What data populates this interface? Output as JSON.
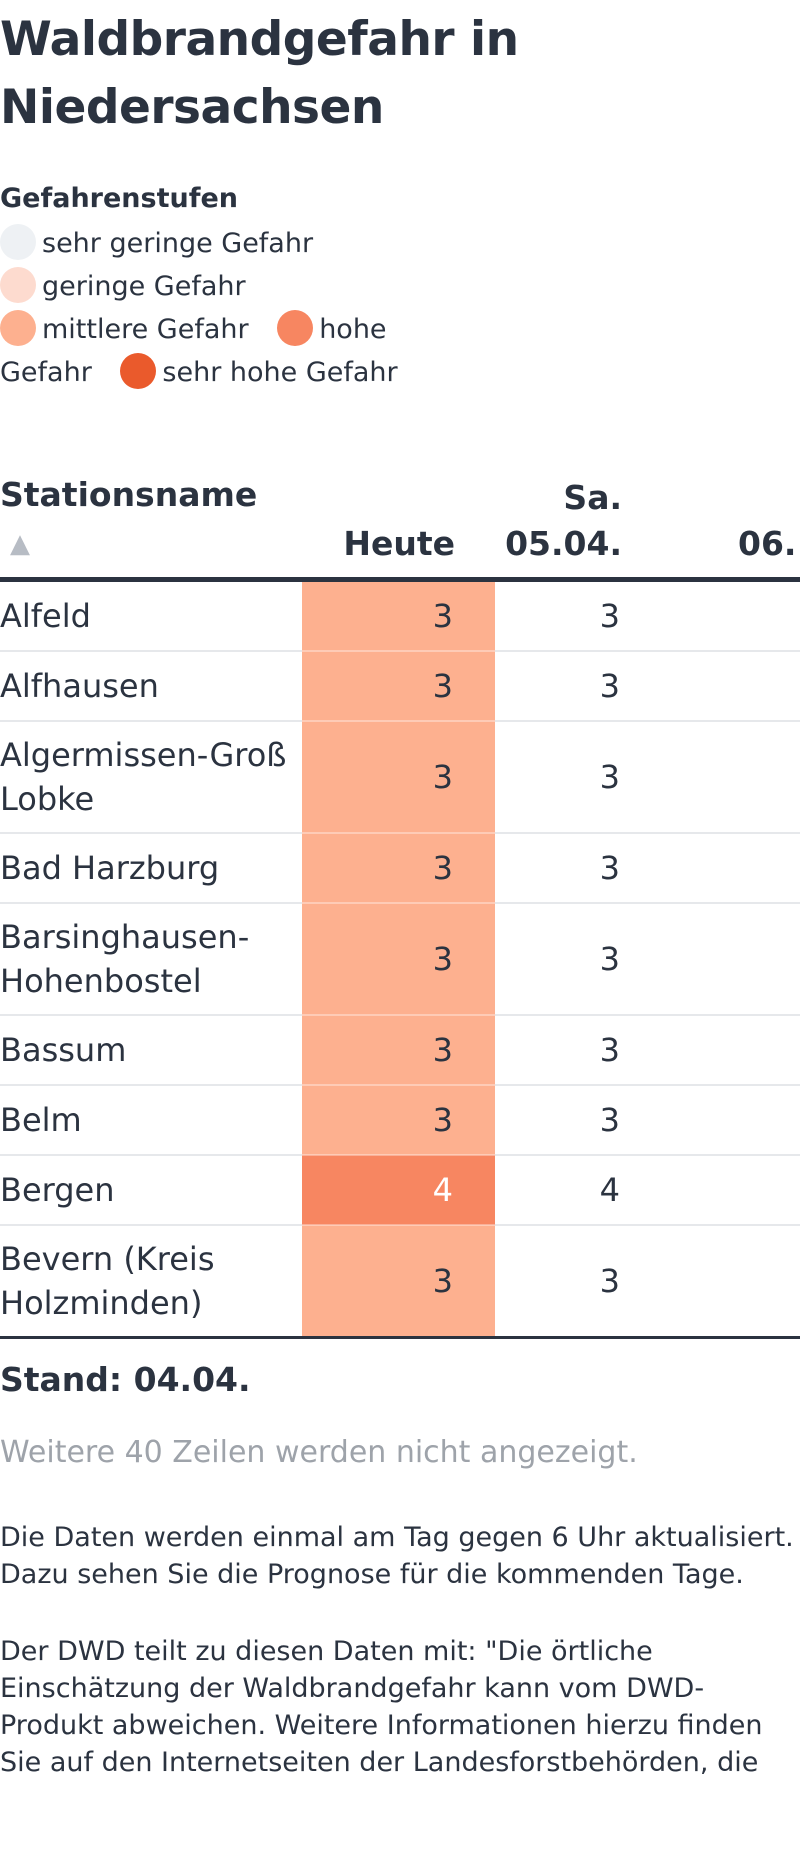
{
  "title": "Waldbrandgefahr in Niedersachsen",
  "legend": {
    "title": "Gefahrenstufen",
    "items": [
      {
        "label": "sehr geringe Gefahr",
        "color": "#eef1f4"
      },
      {
        "label": "geringe Gefahr",
        "color": "#fddbcf"
      },
      {
        "label": "mittlere Gefahr",
        "color": "#fdb08f"
      },
      {
        "label": "hohe Gefahr",
        "color": "#f78661"
      },
      {
        "label": "sehr hohe Gefahr",
        "color": "#ea5a2c"
      }
    ]
  },
  "table": {
    "headers": {
      "station": "Stationsname",
      "sort_icon": "▲",
      "today": "Heute",
      "day1_line1": "Sa.",
      "day1_line2": "05.04.",
      "day2": "06."
    },
    "rows": [
      {
        "name": "Alfeld",
        "today": "3",
        "day1": "3",
        "level": 3
      },
      {
        "name": "Alfhausen",
        "today": "3",
        "day1": "3",
        "level": 3
      },
      {
        "name": "Algermissen-Groß Lobke",
        "today": "3",
        "day1": "3",
        "level": 3
      },
      {
        "name": "Bad Harzburg",
        "today": "3",
        "day1": "3",
        "level": 3
      },
      {
        "name": "Barsinghausen-Hohenbostel",
        "today": "3",
        "day1": "3",
        "level": 3
      },
      {
        "name": "Bassum",
        "today": "3",
        "day1": "3",
        "level": 3
      },
      {
        "name": "Belm",
        "today": "3",
        "day1": "3",
        "level": 3
      },
      {
        "name": "Bergen",
        "today": "4",
        "day1": "4",
        "level": 4
      },
      {
        "name": "Bevern (Kreis Holzminden)",
        "today": "3",
        "day1": "3",
        "level": 3
      }
    ]
  },
  "stand": "Stand: 04.04.",
  "more_rows": "Weitere 40 Zeilen werden nicht angezeigt.",
  "paragraphs": [
    "Die Daten werden einmal am Tag gegen 6 Uhr aktualisiert. Dazu sehen Sie die Prognose für die kommenden Tage.",
    "Der DWD teilt zu diesen Daten mit: \"Die örtliche Einschätzung der Waldbrandgefahr kann vom DWD-Produkt abweichen. Weitere Informationen hierzu finden Sie auf den Internetseiten der Landesforstbehörden, die"
  ]
}
